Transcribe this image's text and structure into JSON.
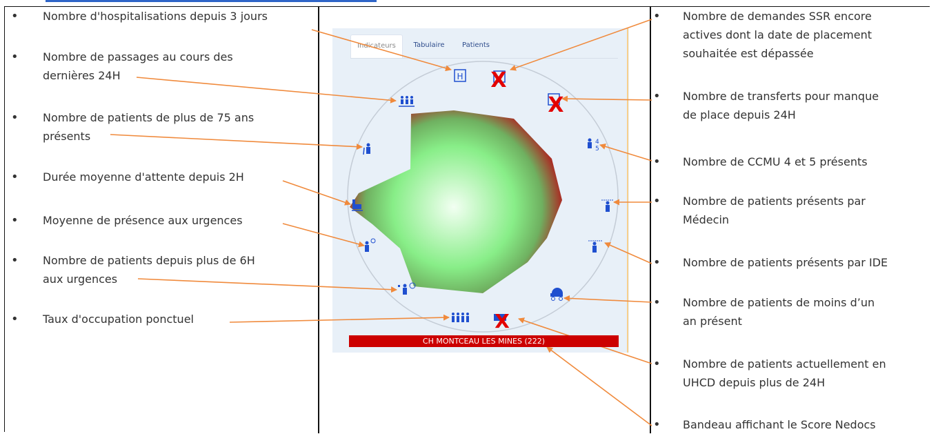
{
  "tabs": [
    {
      "label": "Indicateurs",
      "active": true
    },
    {
      "label": "Tabulaire",
      "active": false
    },
    {
      "label": "Patients",
      "active": false
    }
  ],
  "left_items": [
    "Nombre d'hospitalisations depuis 3 jours",
    "Nombre de passages au cours des\ndernières 24H",
    "Nombre de patients de plus de 75 ans\nprésents",
    "Durée moyenne d'attente depuis 2H",
    "Moyenne de présence aux urgences",
    "Nombre de patients depuis plus de 6H\naux urgences",
    "Taux d'occupation ponctuel"
  ],
  "right_items": [
    "Nombre de demandes SSR encore\nactives dont la date de placement\nsouhaitée est dépassée",
    "Nombre de transferts pour manque\nde place depuis 24H",
    "Nombre de CCMU 4 et 5 présents",
    "Nombre de patients présents par\nMédecin",
    "Nombre de patients présents par IDE",
    "Nombre de patients de moins d’un\nan présent",
    "Nombre de patients actuellement en\nUHCD depuis plus de 24H",
    "Bandeau affichant le Score Nedocs"
  ],
  "banner": "CH MONTCEAU LES MINES (222)",
  "icons": {
    "hospital_letter": "H",
    "ccmu_top": "4",
    "ccmu_bottom": "5",
    "crossed_mark": "X"
  },
  "colors": {
    "accent_blue": "#1f4fcf",
    "arrow_orange": "#f08a3c",
    "banner_red": "#cc0000",
    "radar_center": "#f2fff2",
    "radar_green": "#88ee88",
    "radar_red": "#b01e1e"
  }
}
